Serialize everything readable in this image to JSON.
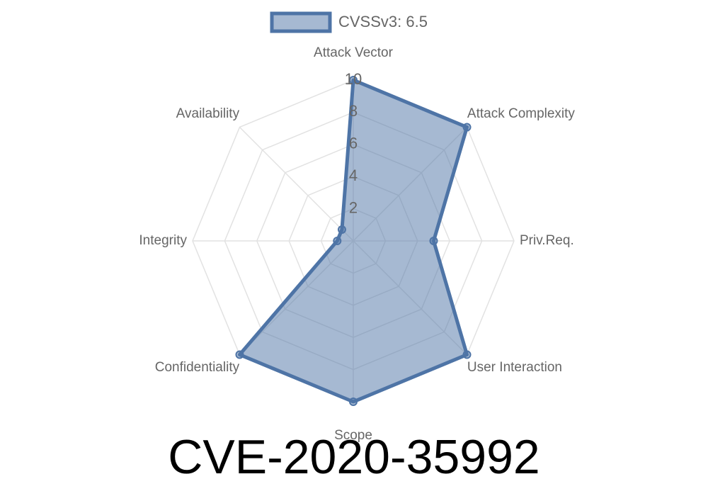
{
  "chart_data": {
    "type": "radar",
    "title": "CVE-2020-35992",
    "categories": [
      "Attack Vector",
      "Attack Complexity",
      "Priv.Req.",
      "User Interaction",
      "Scope",
      "Confidentiality",
      "Integrity",
      "Availability"
    ],
    "series": [
      {
        "name": "CVSSv3: 6.5",
        "color": "#4e74a6",
        "values": [
          10,
          10,
          5,
          10,
          10,
          10,
          1,
          1
        ]
      }
    ],
    "rlim": [
      0,
      10
    ],
    "rticks": [
      2,
      4,
      6,
      8,
      10
    ],
    "grid": true,
    "legend": "top"
  }
}
